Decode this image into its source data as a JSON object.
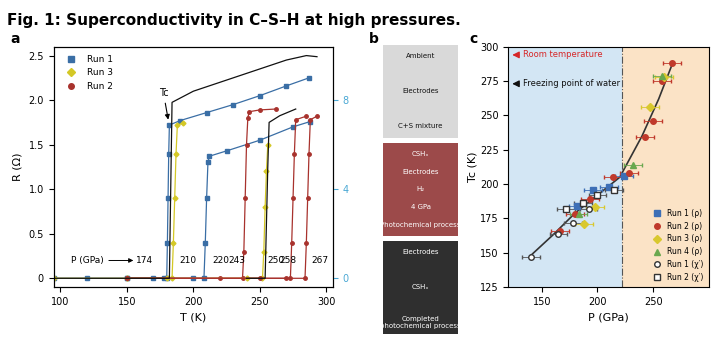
{
  "title": "Fig. 1: Superconductivity in C–S–H at high pressures.",
  "chart_data": [
    {
      "panel": "a",
      "type": "line",
      "xlabel": "T (K)",
      "ylabel": "R (Ω)",
      "xlim": [
        95,
        305
      ],
      "xticks": [
        100,
        150,
        200,
        250,
        300
      ],
      "ylim": [
        -0.1,
        2.6
      ],
      "yticks": [
        0,
        0.5,
        1.0,
        1.5,
        2.0,
        2.5
      ],
      "y2lim": [
        -0.4,
        10.4
      ],
      "y2ticks": [
        0,
        4,
        8
      ],
      "legend": "upper left",
      "annotations": [
        {
          "text": "Tc",
          "x": 181.5,
          "y": 1.75
        },
        {
          "text": "P (GPa)",
          "x": 120,
          "y": 0.2
        },
        {
          "text": "174",
          "x": 163,
          "y": 0.2
        },
        {
          "text": "210",
          "x": 196,
          "y": 0.2
        },
        {
          "text": "220",
          "x": 221,
          "y": 0.2
        },
        {
          "text": "243",
          "x": 233,
          "y": 0.2
        },
        {
          "text": "250",
          "x": 262,
          "y": 0.2
        },
        {
          "text": "258",
          "x": 271,
          "y": 0.2
        },
        {
          "text": "267",
          "x": 295,
          "y": 0.2
        }
      ],
      "series": [
        {
          "name": "Run 1",
          "color": "#3a6ea5",
          "marker": "square",
          "x": [
            95,
            120,
            150,
            170,
            178,
            180,
            180.5,
            181,
            181.5,
            182,
            190,
            210,
            230,
            250,
            270,
            287
          ],
          "values": [
            0,
            0,
            0,
            0,
            0,
            0,
            0.4,
            0.9,
            1.4,
            1.72,
            1.77,
            1.86,
            1.95,
            2.05,
            2.16,
            2.25
          ]
        },
        {
          "name": "Run 3",
          "color": "#d4c826",
          "marker": "diamond",
          "x": [
            95,
            150,
            180,
            184,
            185,
            186,
            187,
            188,
            192
          ],
          "values": [
            0,
            0,
            0,
            0,
            0.4,
            0.9,
            1.4,
            1.72,
            1.74
          ]
        },
        {
          "name": "Run 1",
          "color": "#3a6ea5",
          "marker": "square",
          "x": [
            150,
            200,
            208,
            209,
            210,
            211,
            212,
            225,
            250,
            275,
            288
          ],
          "values": [
            0,
            0,
            0,
            0.4,
            0.9,
            1.3,
            1.37,
            1.43,
            1.55,
            1.7,
            1.76
          ]
        },
        {
          "name": "Run 2",
          "color": "#a8322d",
          "marker": "circle",
          "x": [
            150,
            220,
            237,
            238,
            239,
            240,
            241,
            242,
            250,
            262
          ],
          "values": [
            0,
            0,
            0,
            0.3,
            0.9,
            1.5,
            1.8,
            1.87,
            1.89,
            1.9
          ]
        },
        {
          "name": "Run 3",
          "color": "#d4c826",
          "marker": "diamond",
          "x": [
            150,
            240,
            252,
            253,
            254,
            255,
            256
          ],
          "values": [
            0,
            0,
            0,
            0.3,
            0.8,
            1.2,
            1.5
          ]
        },
        {
          "name": "Run 2",
          "color": "#a8322d",
          "marker": "circle",
          "x": [
            150,
            250,
            273,
            274,
            275,
            276,
            277,
            285
          ],
          "values": [
            0,
            0,
            0,
            0.4,
            0.9,
            1.4,
            1.78,
            1.82
          ]
        },
        {
          "name": "Run 2",
          "color": "#a8322d",
          "marker": "circle",
          "x": [
            150,
            270,
            284,
            285,
            286,
            287,
            288,
            293
          ],
          "values": [
            0,
            0,
            0,
            0.4,
            0.9,
            1.4,
            1.78,
            1.82
          ]
        },
        {
          "color": "#111111",
          "marker": "none",
          "axis": "y2",
          "x": [
            95,
            150,
            182,
            183,
            184,
            200,
            225,
            250,
            270,
            285,
            293
          ],
          "values": [
            0,
            0,
            0,
            4,
            7.9,
            8.4,
            8.9,
            9.4,
            9.8,
            10.0,
            9.95
          ]
        },
        {
          "color": "#111111",
          "marker": "none",
          "axis": "y2",
          "x": [
            240,
            254,
            255,
            256,
            257,
            265,
            277
          ],
          "values": [
            0,
            0,
            2.5,
            5,
            7.0,
            7.3,
            7.6
          ]
        }
      ]
    },
    {
      "panel": "c",
      "type": "scatter",
      "xlabel": "P (GPa)",
      "ylabel": "Tc (K)",
      "xlim": [
        120,
        300
      ],
      "xticks": [
        150,
        200,
        250
      ],
      "ylim": [
        125,
        300
      ],
      "yticks": [
        125,
        150,
        175,
        200,
        225,
        250,
        275,
        300
      ],
      "legend": "lower right",
      "regions": [
        {
          "from": 120,
          "to": 222,
          "color": "#d3e6f4"
        },
        {
          "from": 222,
          "to": 300,
          "color": "#fbe3c6"
        }
      ],
      "annotations": [
        {
          "text": "Room temperature",
          "y": 294,
          "color": "#d62728"
        },
        {
          "text": "Freezing point of water",
          "y": 273,
          "color": "#111111"
        }
      ],
      "fit": {
        "color": "#333333",
        "x": [
          140,
          160,
          180,
          200,
          220,
          240,
          255,
          267
        ],
        "values": [
          148,
          163,
          179,
          192,
          205,
          235,
          262,
          287
        ]
      },
      "series": [
        {
          "name": "Run 1 (ρ)",
          "color": "#3d6fb6",
          "marker": "square",
          "x": [
            182,
            196,
            210,
            224
          ],
          "values": [
            184,
            196,
            198,
            206
          ],
          "xerr": [
            8,
            8,
            8,
            8
          ]
        },
        {
          "name": "Run 2 (ρ)",
          "color": "#c0392b",
          "marker": "circle",
          "x": [
            166,
            180,
            193,
            214,
            228,
            243,
            250,
            258,
            267
          ],
          "values": [
            166,
            178,
            189,
            205,
            208,
            234,
            246,
            275,
            288
          ],
          "xerr": [
            8,
            8,
            8,
            8,
            8,
            8,
            8,
            8,
            8
          ]
        },
        {
          "name": "Run 3 (ρ)",
          "color": "#d9c82e",
          "marker": "diamond",
          "x": [
            188,
            198,
            247,
            260
          ],
          "values": [
            171,
            183,
            256,
            278
          ],
          "xerr": [
            8,
            8,
            8,
            8
          ]
        },
        {
          "name": "Run 4 (ρ)",
          "color": "#6aa84f",
          "marker": "triangle",
          "x": [
            183,
            232,
            258
          ],
          "values": [
            178,
            214,
            279
          ],
          "xerr": [
            8,
            8,
            8
          ]
        },
        {
          "name": "Run 1 (χ′)",
          "color": "#555555",
          "marker": "open_circle",
          "x": [
            140,
            165,
            178,
            192
          ],
          "values": [
            147,
            164,
            172,
            182
          ],
          "xerr": [
            8,
            8,
            8,
            8
          ]
        },
        {
          "name": "Run 2 (χ′)",
          "color": "#555555",
          "marker": "open_square",
          "x": [
            172,
            187,
            200,
            215
          ],
          "values": [
            182,
            186,
            192,
            196
          ],
          "xerr": [
            8,
            8,
            8,
            8
          ]
        }
      ]
    }
  ],
  "photos": {
    "panel": "b",
    "images": [
      {
        "color": "#d9d9d9",
        "labels": [
          "Ambient",
          "Electrodes",
          "C+S mixture"
        ]
      },
      {
        "color": "#9c4a4a",
        "labels": [
          "CSHₓ",
          "Electrodes",
          "H₂",
          "4 GPa",
          "Photochemical process"
        ]
      },
      {
        "color": "#2f2f2f",
        "labels": [
          "Electrodes",
          "CSHₓ",
          "Completed\nphotochemical process"
        ]
      }
    ]
  }
}
